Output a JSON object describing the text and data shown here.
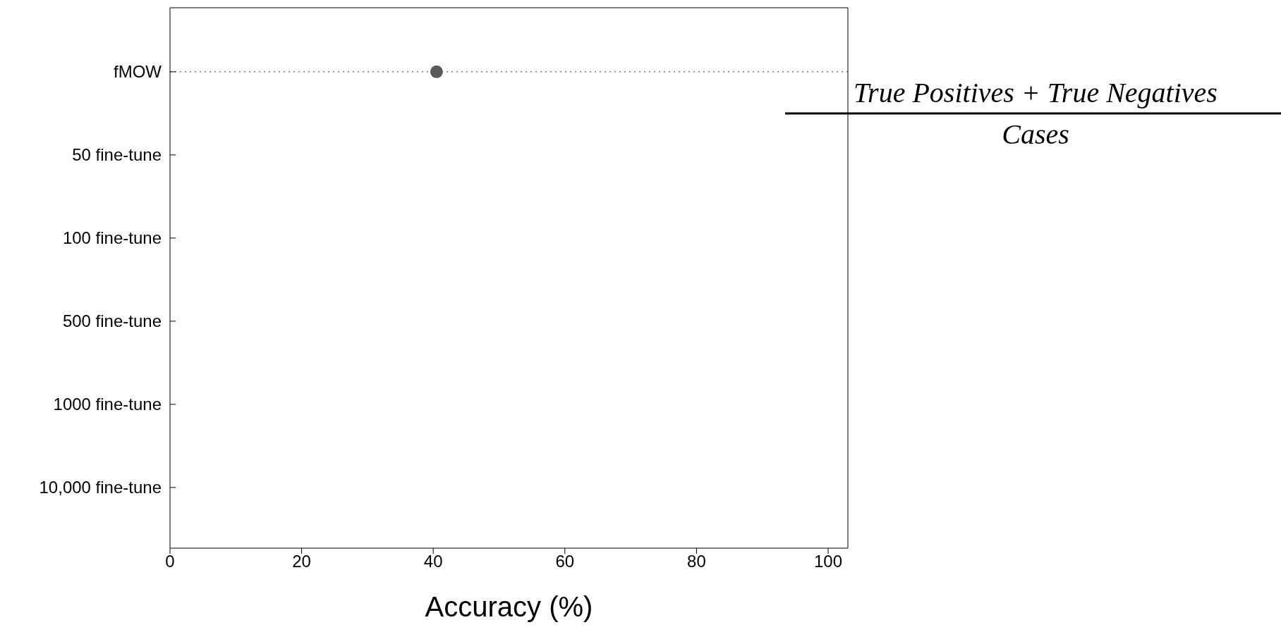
{
  "chart_data": {
    "type": "scatter",
    "orientation": "horizontal",
    "categories": [
      "fMOW",
      "50 fine-tune",
      "100 fine-tune",
      "500 fine-tune",
      "1000  fine-tune",
      "10,000 fine-tune"
    ],
    "values": [
      40.5,
      null,
      null,
      null,
      null,
      null
    ],
    "color": "#595959",
    "marker": "circle",
    "ref_lines": [
      {
        "axis": "y",
        "value": "fMOW",
        "color": "#777777",
        "line_style": "dotted"
      }
    ],
    "xlabel": "Accuracy (%)",
    "xlim": [
      0,
      103
    ],
    "xticks": [
      0,
      20,
      40,
      60,
      80,
      100
    ],
    "annotations": [
      "True Positives + True Negatives",
      "Cases"
    ],
    "legend": false
  }
}
